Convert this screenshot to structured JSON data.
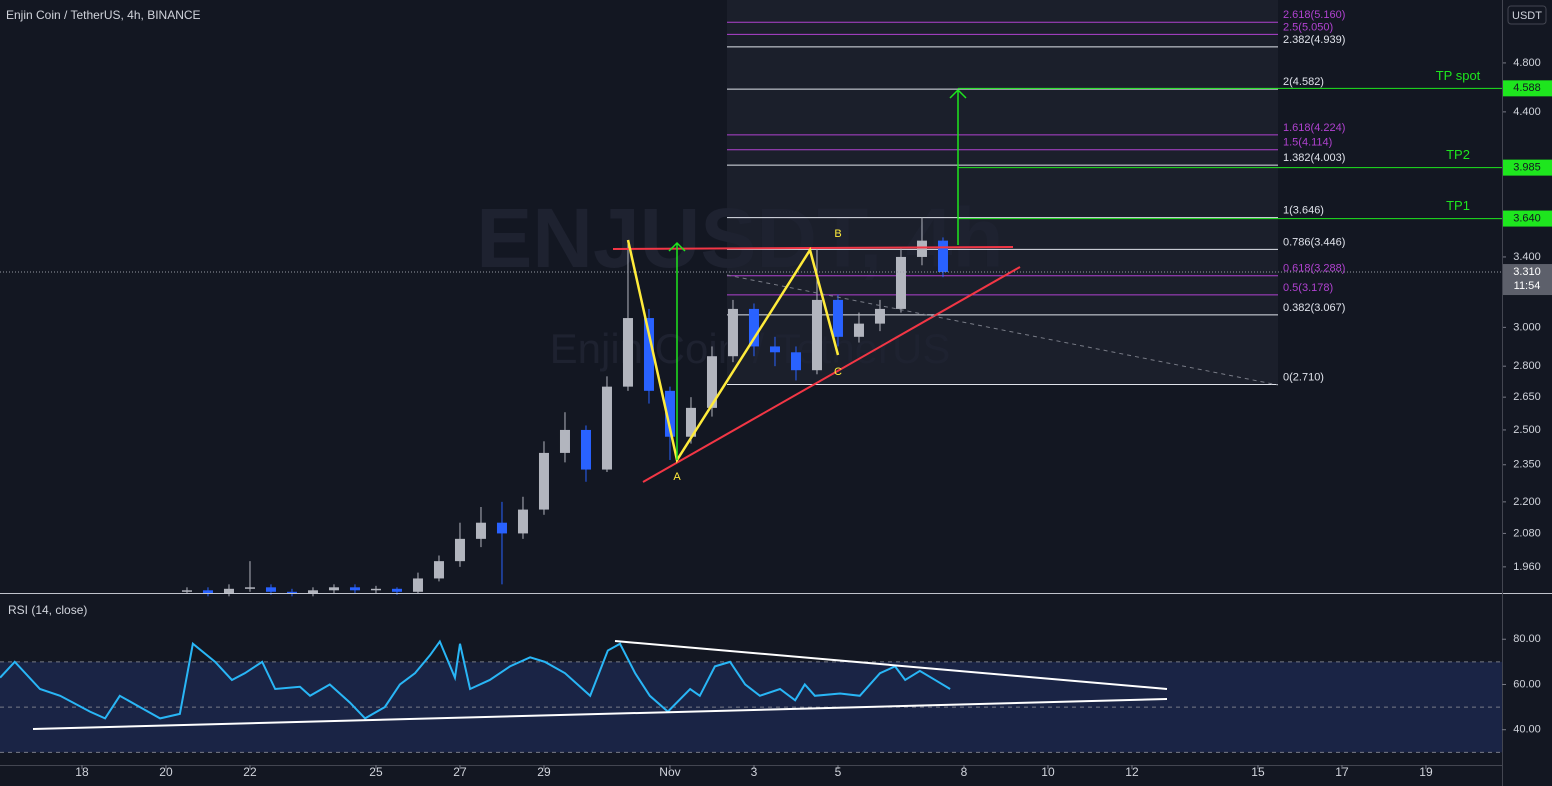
{
  "chart_data": [
    {
      "type": "candlestick",
      "title": "Enjin Coin / TetherUS, 4h, BINANCE",
      "currency": "USDT",
      "watermark": [
        "ENJUSDT, 4h",
        "Enjin Coin / TetherUS"
      ],
      "log_scale": true,
      "xlim": [
        -1.952,
        33.81
      ],
      "ylim": [
        1.871,
        5.368
      ],
      "yticks": [
        {
          "value": 1.96,
          "label": "1.960"
        },
        {
          "value": 2.08,
          "label": "2.080"
        },
        {
          "value": 2.2,
          "label": "2.200"
        },
        {
          "value": 2.35,
          "label": "2.350"
        },
        {
          "value": 2.5,
          "label": "2.500"
        },
        {
          "value": 2.65,
          "label": "2.650"
        },
        {
          "value": 2.8,
          "label": "2.800"
        },
        {
          "value": 3,
          "label": "3.000"
        },
        {
          "value": 3.4,
          "label": "3.400"
        },
        {
          "value": 4.4,
          "label": "4.400"
        },
        {
          "value": 4.8,
          "label": "4.800"
        }
      ],
      "up_color": "#b2b5be",
      "down_color": "#2962ff",
      "x": [
        2.5,
        3,
        3.5,
        4,
        4.5,
        5,
        5.5,
        6,
        6.5,
        7,
        7.5,
        8,
        8.5,
        9,
        9.5,
        10,
        10.5,
        11,
        11.5,
        12,
        12.5,
        13,
        13.5,
        14,
        14.5,
        15,
        15.5,
        16,
        16.5,
        17,
        17.5,
        18,
        18.5,
        19,
        19.5,
        20,
        20.5
      ],
      "open": [
        1.875,
        1.88,
        1.87,
        1.885,
        1.89,
        1.875,
        1.87,
        1.88,
        1.89,
        1.88,
        1.885,
        1.875,
        1.92,
        1.98,
        2.06,
        2.12,
        2.08,
        2.17,
        2.4,
        2.5,
        2.33,
        2.7,
        3.05,
        2.68,
        2.47,
        2.6,
        2.85,
        3.1,
        2.9,
        2.87,
        2.78,
        3.15,
        2.95,
        3.02,
        3.1,
        3.4,
        3.5
      ],
      "high": [
        1.89,
        1.89,
        1.9,
        1.98,
        1.9,
        1.885,
        1.89,
        1.9,
        1.9,
        1.895,
        1.89,
        1.94,
        2.0,
        2.12,
        2.18,
        2.2,
        2.22,
        2.45,
        2.58,
        2.52,
        2.75,
        3.48,
        3.1,
        2.7,
        2.65,
        2.9,
        3.15,
        3.13,
        2.95,
        2.9,
        3.45,
        3.18,
        3.08,
        3.15,
        3.45,
        3.65,
        3.52
      ],
      "low": [
        1.87,
        1.86,
        1.86,
        1.875,
        1.865,
        1.86,
        1.86,
        1.87,
        1.87,
        1.87,
        1.865,
        1.87,
        1.91,
        1.96,
        2.03,
        1.9,
        2.06,
        2.15,
        2.36,
        2.28,
        2.32,
        2.68,
        2.62,
        2.37,
        2.44,
        2.56,
        2.82,
        2.85,
        2.8,
        2.73,
        2.76,
        2.9,
        2.92,
        2.98,
        3.08,
        3.35,
        3.28
      ],
      "close": [
        1.88,
        1.87,
        1.885,
        1.89,
        1.875,
        1.87,
        1.88,
        1.89,
        1.88,
        1.885,
        1.875,
        1.92,
        1.98,
        2.06,
        2.12,
        2.08,
        2.17,
        2.4,
        2.5,
        2.33,
        2.7,
        3.05,
        2.68,
        2.47,
        2.6,
        2.85,
        3.1,
        2.9,
        2.87,
        2.78,
        3.15,
        2.95,
        3.02,
        3.1,
        3.4,
        3.5,
        3.31
      ],
      "last_price": {
        "value": 3.31,
        "label": "3.310"
      },
      "countdown": "11:54",
      "fib_levels": [
        {
          "label": "2.618(5.160)",
          "price": 5.16,
          "color": "#b042d0"
        },
        {
          "label": "2.5(5.050)",
          "price": 5.05,
          "color": "#b042d0"
        },
        {
          "label": "2.382(4.939)",
          "price": 4.939,
          "color": "#e0e3eb"
        },
        {
          "label": "2(4.582)",
          "price": 4.582,
          "color": "#e0e3eb"
        },
        {
          "label": "1.618(4.224)",
          "price": 4.224,
          "color": "#b042d0"
        },
        {
          "label": "1.5(4.114)",
          "price": 4.114,
          "color": "#b042d0"
        },
        {
          "label": "1.382(4.003)",
          "price": 4.003,
          "color": "#e0e3eb"
        },
        {
          "label": "1(3.646)",
          "price": 3.646,
          "color": "#e0e3eb"
        },
        {
          "label": "0.786(3.446)",
          "price": 3.446,
          "color": "#e0e3eb"
        },
        {
          "label": "0.618(3.288)",
          "price": 3.288,
          "color": "#b042d0"
        },
        {
          "label": "0.5(3.178)",
          "price": 3.178,
          "color": "#b042d0"
        },
        {
          "label": "0.382(3.067)",
          "price": 3.067,
          "color": "#e0e3eb"
        },
        {
          "label": "0(2.710)",
          "price": 2.71,
          "color": "#e0e3eb"
        }
      ],
      "targets": [
        {
          "text": "TP spot",
          "value": 4.588,
          "label": "4.588"
        },
        {
          "text": "TP2",
          "value": 3.985,
          "label": "3.985"
        },
        {
          "text": "TP1",
          "value": 3.64,
          "label": "3.640"
        }
      ],
      "target_color": "#1ee61e",
      "pattern_labels": [
        "A",
        "B",
        "C"
      ]
    },
    {
      "type": "line",
      "title": "RSI (14, close)",
      "color": "#29b6f6",
      "xlim": [
        -1.952,
        33.81
      ],
      "ylim": [
        24.4,
        100
      ],
      "yticks": [
        {
          "value": 40,
          "label": "40.00"
        },
        {
          "value": 60,
          "label": "60.00"
        },
        {
          "value": 80,
          "label": "80.00"
        }
      ],
      "band": [
        30,
        70
      ],
      "midline": 50,
      "xticks": [
        {
          "value": 0,
          "label": "18"
        },
        {
          "value": 2,
          "label": "20"
        },
        {
          "value": 4,
          "label": "22"
        },
        {
          "value": 7,
          "label": "25"
        },
        {
          "value": 9,
          "label": "27"
        },
        {
          "value": 11,
          "label": "29"
        },
        {
          "value": 14,
          "label": "Nov"
        },
        {
          "value": 16,
          "label": "3"
        },
        {
          "value": 18,
          "label": "5"
        },
        {
          "value": 21,
          "label": "8"
        },
        {
          "value": 23,
          "label": "10"
        },
        {
          "value": 25,
          "label": "12"
        },
        {
          "value": 28,
          "label": "15"
        },
        {
          "value": 30,
          "label": "17"
        },
        {
          "value": 32,
          "label": "19"
        }
      ],
      "x": [
        -1.95,
        -1.6,
        -1.0,
        -0.52,
        0.19,
        0.55,
        0.9,
        1.38,
        1.86,
        2.33,
        2.64,
        3.17,
        3.57,
        3.88,
        4.29,
        4.6,
        5.19,
        5.43,
        5.9,
        6.38,
        6.74,
        7.21,
        7.57,
        7.93,
        8.29,
        8.52,
        8.88,
        9.0,
        9.24,
        9.71,
        10.19,
        10.67,
        11.02,
        11.5,
        12.1,
        12.52,
        12.81,
        13.17,
        13.52,
        13.95,
        14.48,
        14.71,
        15.07,
        15.43,
        15.79,
        16.14,
        16.62,
        16.98,
        17.21,
        17.45,
        18.05,
        18.52,
        19.0,
        19.36,
        19.6,
        19.95,
        20.31,
        20.67
      ],
      "values": [
        63,
        70,
        58,
        55,
        48,
        45,
        55,
        50,
        45,
        47,
        78,
        70,
        62,
        65,
        70,
        58,
        59,
        55,
        60,
        52,
        45,
        50,
        60,
        65,
        73,
        79,
        63,
        78,
        58,
        62,
        68,
        72,
        70,
        65,
        55,
        75,
        78,
        65,
        55,
        48,
        58,
        55,
        68,
        70,
        60,
        55,
        58,
        53,
        60,
        55,
        56,
        55,
        65,
        68,
        62,
        66,
        62,
        58
      ]
    }
  ]
}
